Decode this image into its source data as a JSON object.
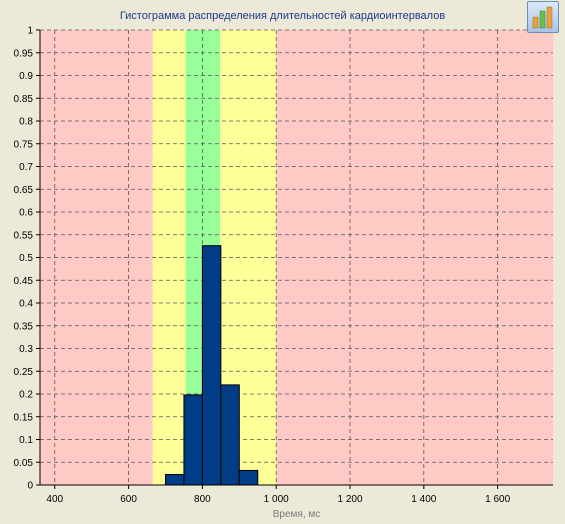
{
  "chart_data": {
    "type": "bar",
    "title": "Гистограмма распределения длительностей кардиоинтервалов",
    "xlabel": "Время, мс",
    "ylabel": "",
    "xlim": [
      360,
      1750
    ],
    "ylim": [
      0,
      1
    ],
    "x_ticks": [
      400,
      600,
      800,
      1000,
      1200,
      1400,
      1600
    ],
    "x_tick_labels": [
      "400",
      "600",
      "800",
      "1 000",
      "1 200",
      "1 400",
      "1 600"
    ],
    "y_ticks": [
      0,
      0.05,
      0.1,
      0.15,
      0.2,
      0.25,
      0.3,
      0.35,
      0.4,
      0.45,
      0.5,
      0.55,
      0.6,
      0.65,
      0.7,
      0.75,
      0.8,
      0.85,
      0.9,
      0.95,
      1
    ],
    "y_tick_labels": [
      "0",
      "0.05",
      "0.1",
      "0.15",
      "0.2",
      "0.25",
      "0.3",
      "0.35",
      "0.4",
      "0.45",
      "0.5",
      "0.55",
      "0.6",
      "0.65",
      "0.7",
      "0.75",
      "0.8",
      "0.85",
      "0.9",
      "0.95",
      "1"
    ],
    "bins": [
      {
        "start": 700,
        "end": 750,
        "value": 0.023
      },
      {
        "start": 750,
        "end": 800,
        "value": 0.198
      },
      {
        "start": 800,
        "end": 850,
        "value": 0.526
      },
      {
        "start": 850,
        "end": 900,
        "value": 0.22
      },
      {
        "start": 900,
        "end": 950,
        "value": 0.032
      }
    ],
    "zones": [
      {
        "name": "outer",
        "start": 360,
        "end": 1750,
        "color": "#ffcac6"
      },
      {
        "name": "acceptable",
        "start": 665,
        "end": 1000,
        "color": "#ffff99"
      },
      {
        "name": "normal",
        "start": 755,
        "end": 848,
        "color": "#99ff99"
      }
    ],
    "bar_color": "#003d86",
    "grid": true,
    "legend": "none"
  },
  "toolbar": {
    "button_icon": "bar-chart-icon"
  }
}
